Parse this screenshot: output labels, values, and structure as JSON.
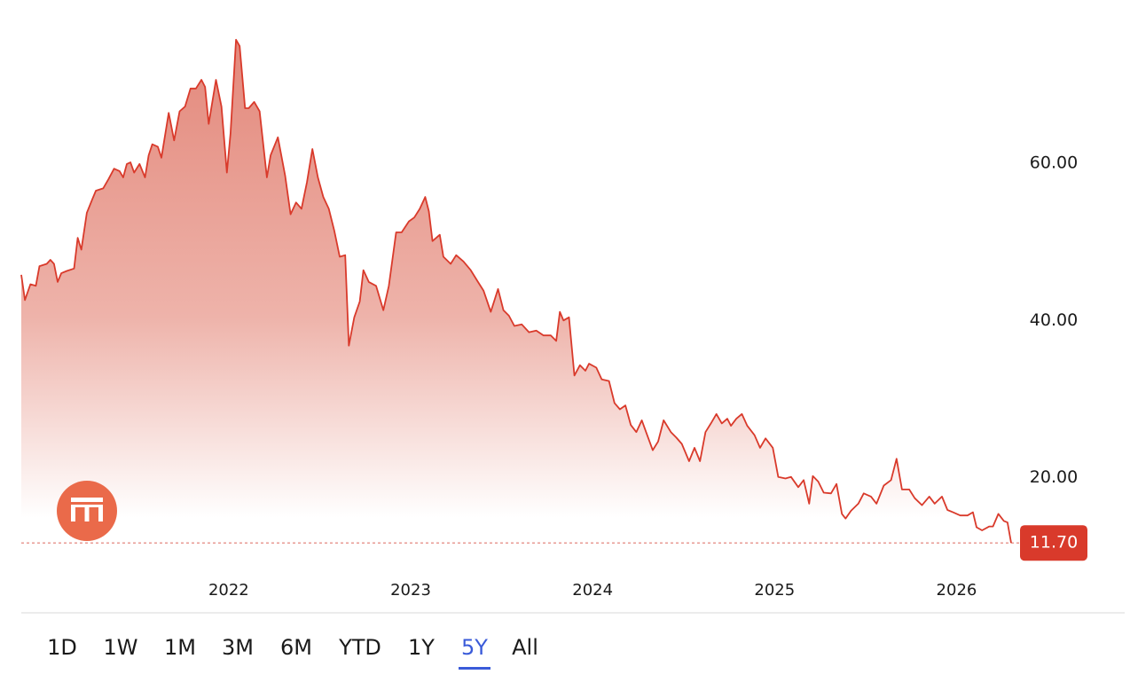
{
  "chart_data": {
    "type": "area",
    "x": [
      2020.86,
      2020.88,
      2020.91,
      2020.94,
      2020.96,
      2021.0,
      2021.02,
      2021.04,
      2021.06,
      2021.08,
      2021.11,
      2021.15,
      2021.17,
      2021.19,
      2021.22,
      2021.25,
      2021.27,
      2021.31,
      2021.34,
      2021.37,
      2021.4,
      2021.42,
      2021.44,
      2021.46,
      2021.48,
      2021.51,
      2021.54,
      2021.56,
      2021.58,
      2021.61,
      2021.63,
      2021.67,
      2021.7,
      2021.73,
      2021.76,
      2021.79,
      2021.82,
      2021.85,
      2021.87,
      2021.89,
      2021.93,
      2021.96,
      2021.99,
      2022.01,
      2022.04,
      2022.06,
      2022.09,
      2022.11,
      2022.14,
      2022.17,
      2022.21,
      2022.23,
      2022.27,
      2022.31,
      2022.34,
      2022.37,
      2022.4,
      2022.43,
      2022.46,
      2022.49,
      2022.52,
      2022.55,
      2022.58,
      2022.61,
      2022.64,
      2022.66,
      2022.69,
      2022.72,
      2022.74,
      2022.77,
      2022.81,
      2022.85,
      2022.88,
      2022.92,
      2022.95,
      2022.99,
      2023.02,
      2023.05,
      2023.08,
      2023.1,
      2023.12,
      2023.16,
      2023.18,
      2023.22,
      2023.25,
      2023.29,
      2023.33,
      2023.37,
      2023.4,
      2023.44,
      2023.48,
      2023.51,
      2023.54,
      2023.57,
      2023.61,
      2023.65,
      2023.69,
      2023.73,
      2023.77,
      2023.8,
      2023.82,
      2023.84,
      2023.87,
      2023.9,
      2023.93,
      2023.96,
      2023.98,
      2024.02,
      2024.05,
      2024.09,
      2024.12,
      2024.15,
      2024.18,
      2024.21,
      2024.24,
      2024.27,
      2024.3,
      2024.33,
      2024.36,
      2024.39,
      2024.43,
      2024.46,
      2024.49,
      2024.53,
      2024.56,
      2024.59,
      2024.62,
      2024.65,
      2024.68,
      2024.71,
      2024.74,
      2024.76,
      2024.79,
      2024.82,
      2024.85,
      2024.89,
      2024.92,
      2024.95,
      2024.99,
      2025.02,
      2025.06,
      2025.09,
      2025.13,
      2025.16,
      2025.19,
      2025.21,
      2025.24,
      2025.27,
      2025.31,
      2025.34,
      2025.37,
      2025.39,
      2025.42,
      2025.46,
      2025.49,
      2025.53,
      2025.56,
      2025.6,
      2025.64,
      2025.67,
      2025.7,
      2025.74,
      2025.77,
      2025.81,
      2025.85,
      2025.88,
      2025.92,
      2025.95,
      2025.98,
      2026.02,
      2026.06,
      2026.09,
      2026.11,
      2026.14,
      2026.18,
      2026.2,
      2026.23,
      2026.26,
      2026.28,
      2026.3
    ],
    "values": [
      45.8,
      42.6,
      44.6,
      44.4,
      46.9,
      47.2,
      47.7,
      47.2,
      44.9,
      46.0,
      46.3,
      46.6,
      50.5,
      49.0,
      53.7,
      55.4,
      56.5,
      56.8,
      58.0,
      59.3,
      59.0,
      58.2,
      59.9,
      60.1,
      58.8,
      59.9,
      58.2,
      61.0,
      62.4,
      62.1,
      60.7,
      66.4,
      62.9,
      66.6,
      67.2,
      69.5,
      69.5,
      70.6,
      69.7,
      65.0,
      70.6,
      67.2,
      58.8,
      63.8,
      75.7,
      74.9,
      67.0,
      67.0,
      67.8,
      66.6,
      58.2,
      61.0,
      63.3,
      58.4,
      53.5,
      55.0,
      54.2,
      57.6,
      61.8,
      58.2,
      55.7,
      54.2,
      51.4,
      48.1,
      48.3,
      36.8,
      40.4,
      42.4,
      46.4,
      44.9,
      44.4,
      41.3,
      44.4,
      51.2,
      51.2,
      52.6,
      53.1,
      54.2,
      55.7,
      53.9,
      50.1,
      50.9,
      48.1,
      47.2,
      48.3,
      47.5,
      46.4,
      44.9,
      43.8,
      41.1,
      44.0,
      41.3,
      40.6,
      39.3,
      39.5,
      38.5,
      38.7,
      38.1,
      38.1,
      37.4,
      41.1,
      40.0,
      40.4,
      33.0,
      34.3,
      33.6,
      34.5,
      34.0,
      32.5,
      32.3,
      29.5,
      28.7,
      29.2,
      26.7,
      25.8,
      27.3,
      25.4,
      23.5,
      24.6,
      27.3,
      25.8,
      25.1,
      24.3,
      22.1,
      23.8,
      22.1,
      25.8,
      26.9,
      28.1,
      26.9,
      27.5,
      26.6,
      27.5,
      28.1,
      26.6,
      25.4,
      23.8,
      25.0,
      23.8,
      20.1,
      19.9,
      20.1,
      18.8,
      19.7,
      16.7,
      20.2,
      19.5,
      18.1,
      18.0,
      19.2,
      15.4,
      14.8,
      15.8,
      16.7,
      18.0,
      17.6,
      16.7,
      19.0,
      19.7,
      22.4,
      18.5,
      18.5,
      17.4,
      16.5,
      17.6,
      16.7,
      17.6,
      15.9,
      15.6,
      15.2,
      15.2,
      15.6,
      13.7,
      13.3,
      13.8,
      13.8,
      15.4,
      14.5,
      14.3,
      11.7
    ],
    "color": "#d93a2b",
    "xlim": [
      2020.86,
      2026.3
    ],
    "xticks": [
      2022,
      2023,
      2024,
      2025,
      2026
    ],
    "ylim": [
      8,
      78.5
    ],
    "yticks": [
      {
        "value": 20,
        "label": "20.00"
      },
      {
        "value": 40,
        "label": "40.00"
      },
      {
        "value": 60,
        "label": "60.00"
      }
    ],
    "current_price": {
      "value": 11.7,
      "label": "11.70"
    }
  },
  "range_buttons": [
    "1D",
    "1W",
    "1M",
    "3M",
    "6M",
    "YTD",
    "1Y",
    "5Y",
    "All"
  ],
  "selected_range": "5Y"
}
